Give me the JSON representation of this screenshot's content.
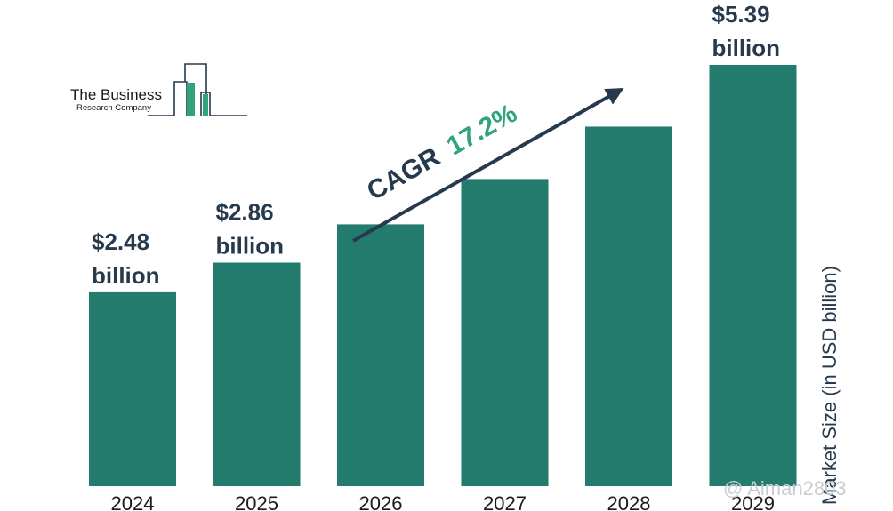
{
  "logo": {
    "line1": "The Business",
    "line2": "Research Company"
  },
  "cagr": {
    "label": "CAGR",
    "value": "17.2%"
  },
  "watermark": "@ Aiman2803",
  "colors": {
    "bar": "#227b6c",
    "label": "#26394d",
    "accent": "#2fa37c"
  },
  "chart_data": {
    "type": "bar",
    "categories": [
      "2024",
      "2025",
      "2026",
      "2027",
      "2028",
      "2029"
    ],
    "values": [
      2.48,
      2.86,
      3.35,
      3.93,
      4.6,
      5.39
    ],
    "value_labels": [
      [
        "$2.48",
        "billion"
      ],
      [
        "$2.86",
        "billion"
      ],
      null,
      null,
      null,
      [
        "$5.39",
        "billion"
      ]
    ],
    "ylabel": "Market Size (in USD billion)",
    "grid": false,
    "legend": "none"
  }
}
